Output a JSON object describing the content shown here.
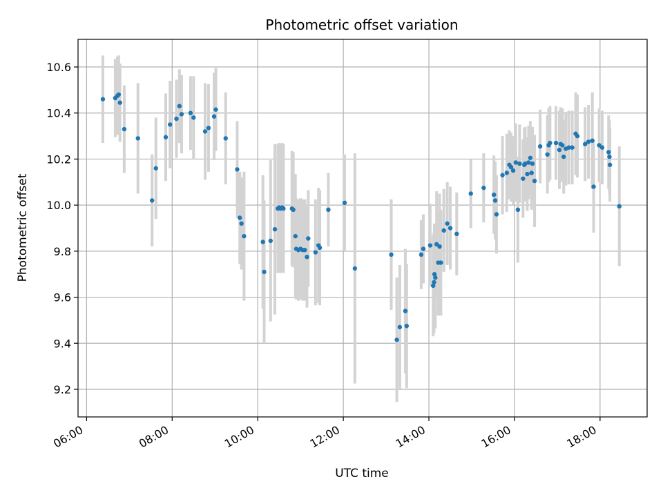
{
  "chart_data": {
    "type": "scatter",
    "title": "Photometric offset variation",
    "xlabel": "UTC time",
    "ylabel": "Photometric offset",
    "x_unit": "hours UTC",
    "xlim": [
      5.8,
      19.1
    ],
    "ylim": [
      9.08,
      10.72
    ],
    "grid": true,
    "x_ticks": [
      6,
      8,
      10,
      12,
      14,
      16,
      18
    ],
    "x_tick_labels": [
      "06:00",
      "08:00",
      "10:00",
      "12:00",
      "14:00",
      "16:00",
      "18:00"
    ],
    "y_ticks": [
      9.2,
      9.4,
      9.6,
      9.8,
      10.0,
      10.2,
      10.4,
      10.6
    ],
    "y_tick_labels": [
      "9.2",
      "9.4",
      "9.6",
      "9.8",
      "10.0",
      "10.2",
      "10.4",
      "10.6"
    ],
    "colors": {
      "point": "#1f77b4",
      "errorbar": "#d3d3d3",
      "grid": "#b0b0b0"
    },
    "series": [
      {
        "x": [
          6.38,
          6.67,
          6.72,
          6.75,
          6.78,
          6.88,
          7.2,
          7.53,
          7.62,
          7.85,
          7.95,
          8.1,
          8.17,
          8.22,
          8.43,
          8.5,
          8.77,
          8.85,
          8.98,
          9.02,
          9.25,
          9.52,
          9.58,
          9.62,
          9.68,
          10.12,
          10.15,
          10.3,
          10.4,
          10.47,
          10.5,
          10.53,
          10.57,
          10.6,
          10.8,
          10.83,
          10.88,
          10.9,
          10.95,
          11.0,
          11.05,
          11.1,
          11.15,
          11.18,
          11.35,
          11.42,
          11.45,
          11.65,
          12.03,
          12.27,
          13.12,
          13.25,
          13.32,
          13.45,
          13.48,
          13.82,
          13.87,
          14.03,
          14.1,
          14.12,
          14.13,
          14.15,
          14.18,
          14.22,
          14.25,
          14.28,
          14.35,
          14.43,
          14.5,
          14.65,
          14.98,
          15.28,
          15.52,
          15.55,
          15.58,
          15.72,
          15.82,
          15.88,
          15.92,
          15.97,
          16.03,
          16.08,
          16.12,
          16.2,
          16.23,
          16.25,
          16.3,
          16.33,
          16.37,
          16.4,
          16.42,
          16.47,
          16.6,
          16.77,
          16.8,
          16.83,
          16.97,
          17.05,
          17.08,
          17.12,
          17.15,
          17.2,
          17.27,
          17.35,
          17.43,
          17.47,
          17.65,
          17.73,
          17.82,
          17.85,
          17.98,
          18.05,
          18.2,
          18.22,
          18.23,
          18.45
        ],
        "y": [
          10.46,
          10.465,
          10.475,
          10.48,
          10.445,
          10.33,
          10.29,
          10.02,
          10.16,
          10.295,
          10.35,
          10.375,
          10.43,
          10.395,
          10.4,
          10.38,
          10.32,
          10.335,
          10.385,
          10.415,
          10.29,
          10.155,
          9.945,
          9.92,
          9.865,
          9.84,
          9.71,
          9.845,
          9.895,
          9.985,
          9.99,
          9.985,
          9.99,
          9.985,
          9.985,
          9.98,
          9.865,
          9.81,
          9.805,
          9.81,
          9.805,
          9.805,
          9.775,
          9.855,
          9.795,
          9.825,
          9.815,
          9.98,
          10.01,
          9.725,
          9.785,
          9.415,
          9.47,
          9.54,
          9.475,
          9.785,
          9.81,
          9.825,
          9.65,
          9.665,
          9.7,
          9.685,
          9.83,
          9.75,
          9.82,
          9.75,
          9.89,
          9.92,
          9.9,
          9.875,
          10.05,
          10.075,
          10.045,
          10.02,
          9.96,
          10.13,
          10.14,
          10.175,
          10.165,
          10.15,
          10.185,
          9.98,
          10.18,
          10.115,
          10.175,
          10.18,
          10.135,
          10.185,
          10.205,
          10.14,
          10.18,
          10.105,
          10.255,
          10.22,
          10.26,
          10.27,
          10.27,
          10.24,
          10.265,
          10.26,
          10.21,
          10.245,
          10.25,
          10.25,
          10.31,
          10.3,
          10.265,
          10.275,
          10.28,
          10.08,
          10.26,
          10.25,
          10.23,
          10.21,
          10.175,
          9.995
        ],
        "err": [
          0.19,
          0.17,
          0.17,
          0.17,
          0.17,
          0.19,
          0.24,
          0.2,
          0.22,
          0.19,
          0.19,
          0.17,
          0.16,
          0.17,
          0.16,
          0.18,
          0.21,
          0.19,
          0.19,
          0.18,
          0.2,
          0.21,
          0.2,
          0.2,
          0.28,
          0.29,
          0.31,
          0.35,
          0.37,
          0.28,
          0.28,
          0.28,
          0.28,
          0.28,
          0.25,
          0.25,
          0.27,
          0.22,
          0.22,
          0.22,
          0.22,
          0.22,
          0.22,
          0.21,
          0.23,
          0.25,
          0.25,
          0.16,
          0.21,
          0.5,
          0.24,
          0.27,
          0.27,
          0.27,
          0.27,
          0.15,
          0.15,
          0.18,
          0.22,
          0.22,
          0.22,
          0.22,
          0.23,
          0.23,
          0.23,
          0.23,
          0.18,
          0.18,
          0.18,
          0.18,
          0.15,
          0.15,
          0.17,
          0.17,
          0.17,
          0.17,
          0.17,
          0.15,
          0.15,
          0.15,
          0.17,
          0.23,
          0.17,
          0.17,
          0.16,
          0.16,
          0.16,
          0.16,
          0.16,
          0.16,
          0.16,
          0.2,
          0.16,
          0.17,
          0.16,
          0.16,
          0.16,
          0.17,
          0.16,
          0.16,
          0.16,
          0.16,
          0.16,
          0.16,
          0.18,
          0.18,
          0.16,
          0.16,
          0.21,
          0.2,
          0.16,
          0.16,
          0.16,
          0.16,
          0.16,
          0.26
        ]
      }
    ]
  }
}
